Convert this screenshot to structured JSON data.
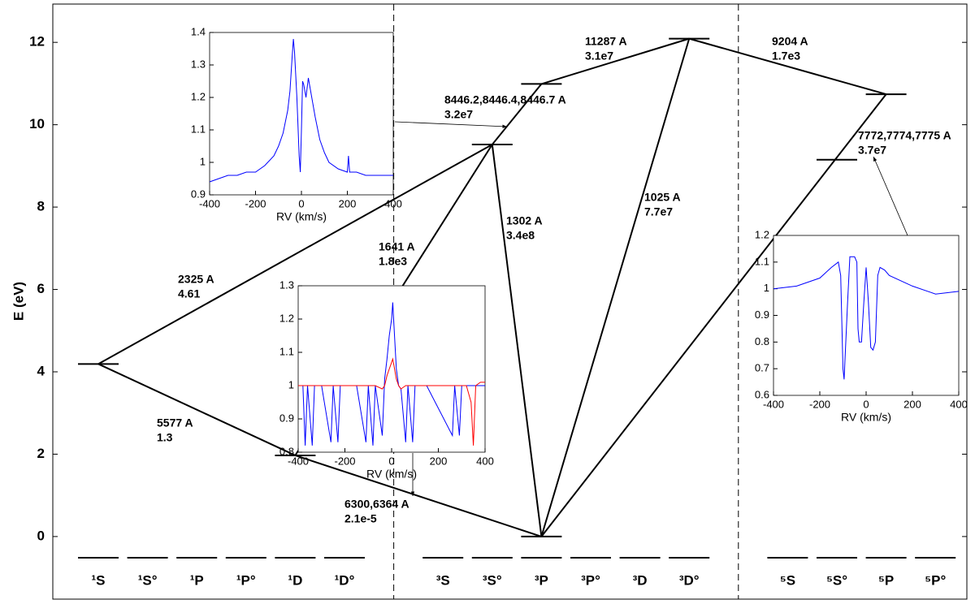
{
  "chart_data": [
    {
      "type": "grotrian",
      "ylabel": "E (eV)",
      "ylim": [
        -1.52,
        12.93
      ],
      "yticks": [
        0,
        2,
        4,
        6,
        8,
        10,
        12
      ],
      "categories": [
        "¹S",
        "¹S°",
        "¹P",
        "¹P°",
        "¹D",
        "¹D°",
        null,
        "³S",
        "³S°",
        "³P",
        "³P°",
        "³D",
        "³D°",
        null,
        "⁵S",
        "⁵S°",
        "⁵P",
        "⁵P°"
      ],
      "levels": [
        {
          "term": "¹S",
          "energy": 4.19
        },
        {
          "term": "¹D",
          "energy": 1.97
        },
        {
          "term": "³P",
          "energy": 0
        },
        {
          "term": "³S°",
          "energy": 9.52
        },
        {
          "term": "³P",
          "energy": 10.99
        },
        {
          "term": "³D°",
          "energy": 12.09
        },
        {
          "term": "⁵S°",
          "energy": 9.15
        },
        {
          "term": "⁵P",
          "energy": 10.74
        }
      ],
      "transitions": [
        {
          "from": 0,
          "to": 3,
          "wavelength": "2325 A",
          "rate": "4.61"
        },
        {
          "from": 0,
          "to": 1,
          "wavelength": "5577 A",
          "rate": "1.3"
        },
        {
          "from": 1,
          "to": 2,
          "wavelength": "6300,6364 A",
          "rate": "2.1e-5"
        },
        {
          "from": 3,
          "to": 2,
          "wavelength": "1302 A",
          "rate": "3.4e8"
        },
        {
          "from": 3,
          "to": 1,
          "wavelength": "1641 A",
          "rate": "1.8e3"
        },
        {
          "from": 3,
          "to": 4,
          "wavelength": "8446.2,8446.4,8446.7 A",
          "rate": "3.2e7"
        },
        {
          "from": 4,
          "to": 5,
          "wavelength": "11287 A",
          "rate": "3.1e7"
        },
        {
          "from": 5,
          "to": 2,
          "wavelength": "1025 A",
          "rate": "7.7e7"
        },
        {
          "from": 5,
          "to": 7,
          "wavelength": "9204 A",
          "rate": "1.7e3"
        },
        {
          "from": 7,
          "to": 2,
          "wavelength": "7772,7774,7775 A",
          "rate": "3.7e7"
        }
      ]
    },
    {
      "type": "line",
      "xlabel": "RV (km/s)",
      "xlim": [
        -400,
        400
      ],
      "ylim": [
        0.9,
        1.4
      ],
      "xticks": [
        -400,
        -200,
        0,
        200,
        400
      ],
      "yticks": [
        0.9,
        1,
        1.1,
        1.2,
        1.3,
        1.4
      ],
      "x": [
        -400,
        -360,
        -320,
        -280,
        -240,
        -200,
        -160,
        -120,
        -100,
        -80,
        -60,
        -50,
        -40,
        -35,
        -30,
        -20,
        -10,
        -5,
        0,
        5,
        10,
        20,
        30,
        40,
        60,
        80,
        100,
        120,
        160,
        200,
        205,
        210,
        240,
        280,
        320,
        360,
        400
      ],
      "series": [
        {
          "color": "#0000ff",
          "values": [
            0.94,
            0.95,
            0.96,
            0.96,
            0.97,
            0.97,
            0.99,
            1.02,
            1.05,
            1.09,
            1.16,
            1.22,
            1.33,
            1.38,
            1.34,
            1.2,
            1.02,
            0.97,
            1.1,
            1.25,
            1.24,
            1.2,
            1.26,
            1.22,
            1.14,
            1.07,
            1.03,
            1.0,
            0.98,
            0.97,
            1.02,
            0.97,
            0.97,
            0.96,
            0.96,
            0.96,
            0.96
          ]
        }
      ]
    },
    {
      "type": "line",
      "xlabel": "RV (km/s)",
      "xlim": [
        -400,
        400
      ],
      "ylim": [
        0.8,
        1.3
      ],
      "xticks": [
        -400,
        -200,
        0,
        200,
        400
      ],
      "yticks": [
        0.8,
        0.9,
        1,
        1.1,
        1.2,
        1.3
      ],
      "x": [
        -400,
        -380,
        -370,
        -360,
        -340,
        -330,
        -300,
        -260,
        -250,
        -230,
        -220,
        -150,
        -110,
        -100,
        -80,
        -70,
        -40,
        -30,
        -20,
        -10,
        0,
        5,
        10,
        20,
        30,
        40,
        60,
        70,
        90,
        100,
        150,
        260,
        270,
        290,
        300,
        320,
        340,
        350,
        360,
        380,
        400
      ],
      "series": [
        {
          "color": "#0000ff",
          "values": [
            1,
            1,
            0.82,
            1,
            0.82,
            1,
            1,
            0.83,
            1,
            0.83,
            1,
            1,
            0.83,
            1,
            0.82,
            1,
            0.85,
            1.02,
            1.08,
            1.15,
            1.2,
            1.25,
            1.18,
            1.05,
            1,
            0.99,
            0.83,
            1,
            0.83,
            1,
            1,
            0.85,
            1,
            0.85,
            1,
            1,
            1,
            1,
            1,
            1,
            1
          ]
        },
        {
          "color": "#ff0000",
          "values": [
            1,
            1,
            1,
            1,
            1,
            1,
            1,
            1,
            1,
            1,
            1,
            1,
            1,
            1,
            1,
            1,
            0.99,
            1.0,
            1.03,
            1.05,
            1.07,
            1.08,
            1.06,
            1.02,
            1,
            0.99,
            1,
            1,
            1,
            1,
            1,
            1,
            1,
            1,
            1,
            1,
            0.95,
            0.82,
            1,
            1.01,
            1.01
          ]
        }
      ]
    },
    {
      "type": "line",
      "xlabel": "RV (km/s)",
      "xlim": [
        -400,
        400
      ],
      "ylim": [
        0.6,
        1.2
      ],
      "xticks": [
        -400,
        -200,
        0,
        200,
        400
      ],
      "yticks": [
        0.6,
        0.7,
        0.8,
        0.9,
        1,
        1.1,
        1.2
      ],
      "x": [
        -400,
        -300,
        -200,
        -150,
        -120,
        -110,
        -100,
        -95,
        -80,
        -70,
        -60,
        -50,
        -40,
        -35,
        -30,
        -20,
        -10,
        0,
        10,
        20,
        30,
        40,
        50,
        60,
        80,
        100,
        200,
        300,
        400
      ],
      "series": [
        {
          "color": "#0000ff",
          "values": [
            1.0,
            1.01,
            1.04,
            1.08,
            1.1,
            1.05,
            0.7,
            0.66,
            0.95,
            1.12,
            1.12,
            1.12,
            1.1,
            0.85,
            0.8,
            0.8,
            0.95,
            1.08,
            0.95,
            0.78,
            0.77,
            0.8,
            1.05,
            1.08,
            1.07,
            1.05,
            1.01,
            0.98,
            0.99
          ]
        }
      ]
    }
  ]
}
